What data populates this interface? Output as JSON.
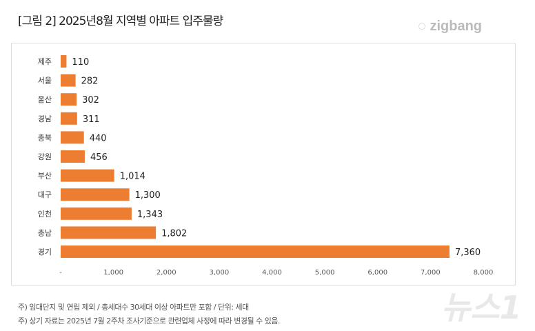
{
  "title": "[그림 2] 2025년8월 지역별 아파트 입주물량",
  "logo": "zigbang",
  "watermark": "뉴스1",
  "notes": [
    "주) 임대단지 및 연립 제외 / 총세대수 30세대 이상 아파트만 포함 / 단위: 세대",
    "주) 상기 자료는 2025년 7월 2주차 조사기준으로 관련업체 사정에 따라 변경될 수 있음."
  ],
  "chart_data": {
    "type": "bar",
    "orientation": "horizontal",
    "categories": [
      "제주",
      "서울",
      "울산",
      "경남",
      "충북",
      "강원",
      "부산",
      "대구",
      "인천",
      "충남",
      "경기"
    ],
    "values": [
      110,
      282,
      302,
      311,
      440,
      456,
      1014,
      1300,
      1343,
      1802,
      7360
    ],
    "value_labels": [
      "110",
      "282",
      "302",
      "311",
      "440",
      "456",
      "1,014",
      "1,300",
      "1,343",
      "1,802",
      "7,360"
    ],
    "xlim": [
      0,
      8000
    ],
    "xticks": [
      "-",
      "1,000",
      "2,000",
      "3,000",
      "4,000",
      "5,000",
      "6,000",
      "7,000",
      "8,000"
    ],
    "bar_color": "#ed7d31",
    "grid": false
  }
}
